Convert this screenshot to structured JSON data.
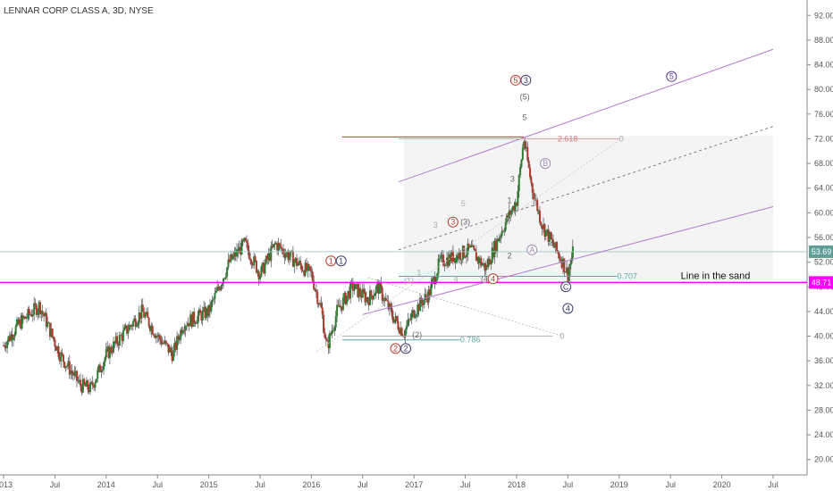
{
  "chart_data": {
    "type": "candlestick",
    "title": "LENNAR CORP CLASS A, 3D, NYSE",
    "y_ticks": [
      "92.00",
      "88.00",
      "84.00",
      "80.00",
      "76.00",
      "72.00",
      "68.00",
      "64.00",
      "60.00",
      "56.00",
      "52.00",
      "48.00",
      "44.00",
      "40.00",
      "36.00",
      "32.00",
      "28.00",
      "24.00",
      "20.00"
    ],
    "ylim": [
      17.5,
      94.5
    ],
    "x_ticks": [
      "2013",
      "Jul",
      "2014",
      "Jul",
      "2015",
      "Jul",
      "2016",
      "Jul",
      "2017",
      "Jul",
      "2018",
      "Jul",
      "2019",
      "Jul",
      "2020",
      "Jul"
    ],
    "x_range": [
      2013.0,
      2020.75
    ],
    "price_label": "53.69",
    "price_value": 53.69,
    "line_label": "48.71",
    "line_value": 48.71,
    "line_text": "Line in the sand",
    "fib_labels": [
      "2.618",
      "0",
      "0.707",
      "0.786",
      "0"
    ],
    "wave_labels": [
      {
        "t": "5",
        "c": "red",
        "circle": true
      },
      {
        "t": "3",
        "c": "navy",
        "circle": true
      },
      {
        "t": "(5)",
        "c": "gray",
        "circle": false
      },
      {
        "t": "5",
        "c": "gray",
        "circle": false
      },
      {
        "t": "5",
        "c": "purple",
        "circle": true
      },
      {
        "t": "B",
        "c": "lav",
        "circle": true
      },
      {
        "t": "3",
        "c": "red",
        "circle": true
      },
      {
        "t": "(3)",
        "c": "gray",
        "circle": false
      },
      {
        "t": "5",
        "c": "lgray",
        "circle": false
      },
      {
        "t": "3",
        "c": "lgray",
        "circle": false
      },
      {
        "t": "3",
        "c": "gray",
        "circle": false
      },
      {
        "t": "1",
        "c": "gray",
        "circle": false
      },
      {
        "t": "4",
        "c": "gray",
        "circle": false
      },
      {
        "t": "2",
        "c": "gray",
        "circle": false
      },
      {
        "t": "A",
        "c": "lav",
        "circle": true
      },
      {
        "t": "1",
        "c": "red",
        "circle": true
      },
      {
        "t": "1",
        "c": "navy",
        "circle": true
      },
      {
        "t": "(4)",
        "c": "gray",
        "circle": false
      },
      {
        "t": "4",
        "c": "red",
        "circle": true
      },
      {
        "t": "C",
        "c": "navy",
        "circle": true
      },
      {
        "t": "4",
        "c": "navy",
        "circle": true
      },
      {
        "t": "(1)",
        "c": "lgray",
        "circle": false
      },
      {
        "t": "1",
        "c": "lgray",
        "circle": false
      },
      {
        "t": "4",
        "c": "lgray",
        "circle": false
      },
      {
        "t": "2",
        "c": "lgray",
        "circle": false
      },
      {
        "t": "(2)",
        "c": "gray",
        "circle": false
      },
      {
        "t": "2",
        "c": "red",
        "circle": true
      },
      {
        "t": "2",
        "c": "navy",
        "circle": true
      }
    ],
    "colors": {
      "up": "#2f7d32",
      "down": "#b03a2e",
      "magenta": "#ff00ff",
      "channel": "#b57bd2",
      "fib_red": "#c0392b",
      "teal": "#5fa8a8"
    }
  }
}
